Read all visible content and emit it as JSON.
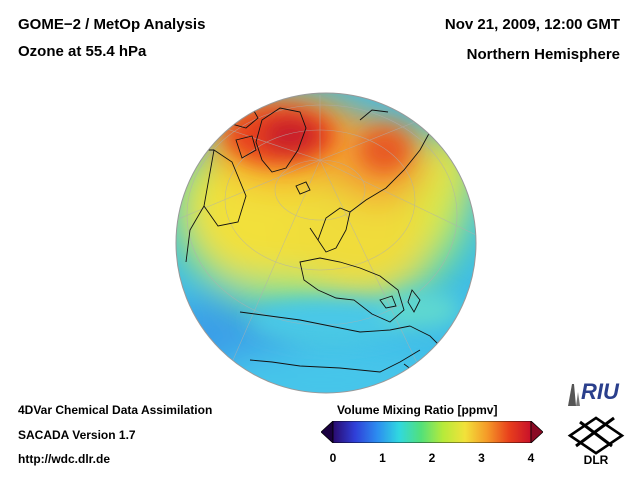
{
  "header": {
    "title_line1": "GOME−2 / MetOp Analysis",
    "title_line2": "Ozone at 55.4 hPa",
    "date": "Nov 21, 2009, 12:00 GMT",
    "region": "Northern Hemisphere"
  },
  "footer": {
    "line1": "4DVar Chemical Data Assimilation",
    "line2": "SACADA Version 1.7",
    "url": "http://wdc.dlr.de"
  },
  "colorbar": {
    "title": "Volume Mixing Ratio [ppmv]",
    "ticks": [
      "0",
      "1",
      "2",
      "3",
      "4"
    ],
    "range": [
      0,
      4
    ],
    "colors": [
      "#2a0a6e",
      "#2f3fd8",
      "#2c8cf0",
      "#30d8e0",
      "#52e07a",
      "#b6ea3a",
      "#f2e23a",
      "#f59a28",
      "#e8401c",
      "#c8102a"
    ]
  },
  "logos": {
    "riu": "RIU",
    "dlr": "DLR"
  },
  "map": {
    "projection": "orthographic",
    "field": "ozone",
    "highs": [
      "over Greenland / Canadian Arctic",
      "over Siberia"
    ]
  }
}
